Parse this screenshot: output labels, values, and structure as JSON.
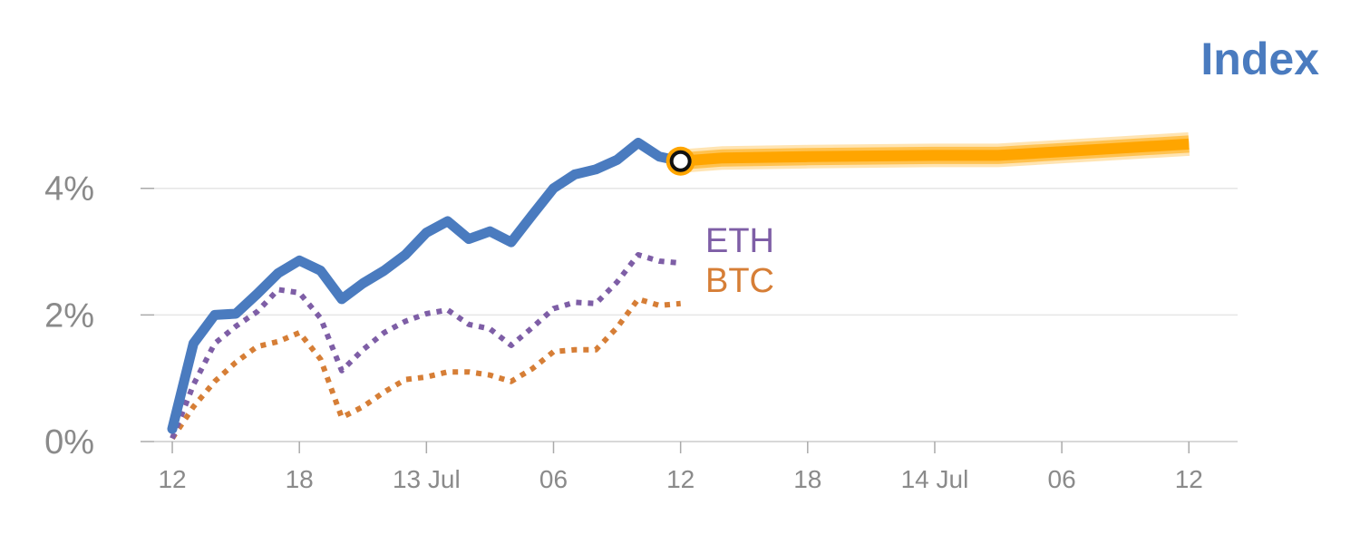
{
  "chart_data": {
    "type": "line",
    "title": "Index",
    "xlabel": "",
    "ylabel": "",
    "ylim": [
      0,
      5.4
    ],
    "grid": true,
    "y_ticks": [
      {
        "value": 0,
        "label": "0%"
      },
      {
        "value": 2,
        "label": "2%"
      },
      {
        "value": 4,
        "label": "4%"
      }
    ],
    "x_ticks": [
      {
        "value": 0,
        "label": "12"
      },
      {
        "value": 6,
        "label": "18"
      },
      {
        "value": 12,
        "label": "13 Jul"
      },
      {
        "value": 18,
        "label": "06"
      },
      {
        "value": 24,
        "label": "12"
      },
      {
        "value": 30,
        "label": "18"
      },
      {
        "value": 36,
        "label": "14 Jul"
      },
      {
        "value": 42,
        "label": "06"
      },
      {
        "value": 48,
        "label": "12"
      }
    ],
    "x_range": [
      -1.5,
      50.3
    ],
    "series": [
      {
        "name": "Index",
        "style": "solid",
        "color": "#4a7bbf",
        "x": [
          0,
          1,
          2,
          3,
          4,
          5,
          6,
          7,
          8,
          9,
          10,
          11,
          12,
          13,
          14,
          15,
          16,
          17,
          18,
          19,
          20,
          21,
          22,
          23,
          24
        ],
        "y": [
          0.2,
          1.55,
          2.0,
          2.02,
          2.33,
          2.66,
          2.86,
          2.7,
          2.25,
          2.5,
          2.7,
          2.95,
          3.3,
          3.48,
          3.2,
          3.32,
          3.15,
          3.58,
          4.0,
          4.22,
          4.3,
          4.45,
          4.72,
          4.5,
          4.43
        ]
      },
      {
        "name": "ETH",
        "style": "dotted",
        "color": "#7e5ea6",
        "x": [
          0,
          1,
          2,
          3,
          4,
          5,
          6,
          7,
          8,
          9,
          10,
          11,
          12,
          13,
          14,
          15,
          16,
          17,
          18,
          19,
          20,
          21,
          22,
          23,
          24
        ],
        "y": [
          0.05,
          0.9,
          1.55,
          1.82,
          2.05,
          2.4,
          2.35,
          1.95,
          1.12,
          1.45,
          1.72,
          1.9,
          2.02,
          2.08,
          1.85,
          1.78,
          1.52,
          1.8,
          2.1,
          2.2,
          2.18,
          2.52,
          2.95,
          2.85,
          2.82
        ]
      },
      {
        "name": "BTC",
        "style": "dotted",
        "color": "#d67e36",
        "x": [
          0,
          1,
          2,
          3,
          4,
          5,
          6,
          7,
          8,
          9,
          10,
          11,
          12,
          13,
          14,
          15,
          16,
          17,
          18,
          19,
          20,
          21,
          22,
          23,
          24
        ],
        "y": [
          0.05,
          0.55,
          0.95,
          1.25,
          1.5,
          1.58,
          1.72,
          1.3,
          0.38,
          0.55,
          0.78,
          0.98,
          1.02,
          1.1,
          1.1,
          1.05,
          0.95,
          1.15,
          1.42,
          1.45,
          1.45,
          1.8,
          2.25,
          2.15,
          2.18
        ]
      }
    ],
    "forecast": {
      "color": "#ffa500",
      "marker_x": 24,
      "marker_y": 4.43,
      "x": [
        24,
        26,
        30,
        36,
        39,
        42,
        48
      ],
      "y": [
        4.43,
        4.48,
        4.5,
        4.52,
        4.52,
        4.58,
        4.7
      ]
    }
  }
}
